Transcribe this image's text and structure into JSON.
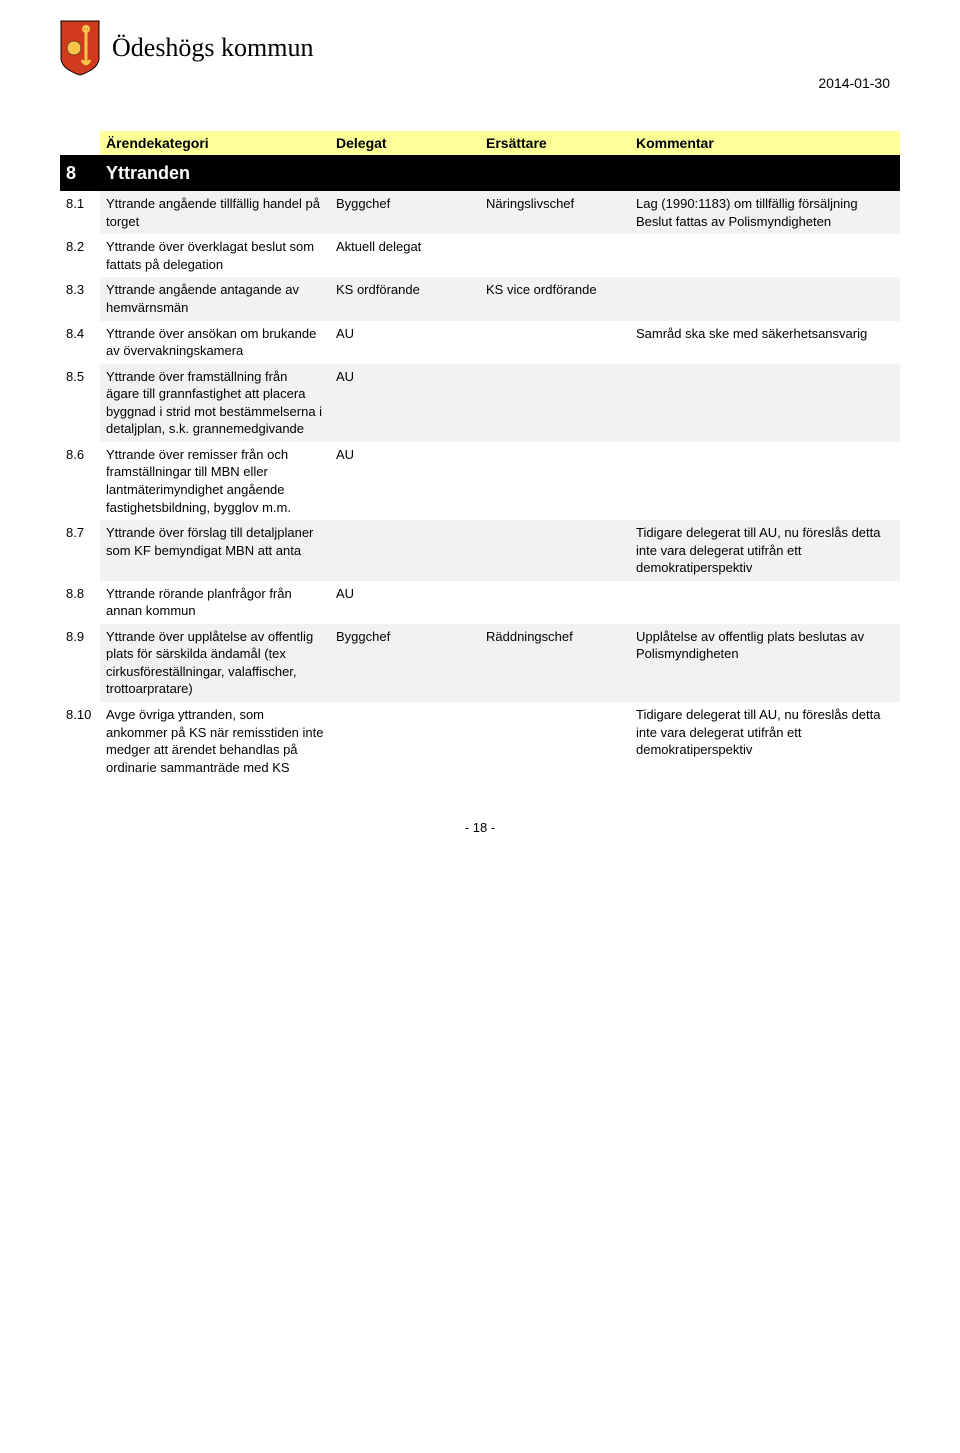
{
  "header": {
    "logo_text": "Ödeshögs kommun",
    "date": "2014-01-30"
  },
  "columns": {
    "c0": "",
    "c1": "Ärendekategori",
    "c2": "Delegat",
    "c3": "Ersättare",
    "c4": "Kommentar"
  },
  "section": {
    "num": "8",
    "title": "Yttranden"
  },
  "rows": [
    {
      "num": "8.1",
      "cat": "Yttrande angående tillfällig handel på torget",
      "delegat": "Byggchef",
      "ersattare": "Näringslivschef",
      "kommentar": "Lag (1990:1183) om tillfällig försäljning Beslut fattas av Polismyndigheten",
      "shaded": true
    },
    {
      "num": "8.2",
      "cat": "Yttrande över överklagat beslut som fattats på delegation",
      "delegat": "Aktuell delegat",
      "ersattare": "",
      "kommentar": "",
      "shaded": false
    },
    {
      "num": "8.3",
      "cat": "Yttrande angående antagande av hemvärnsmän",
      "delegat": "KS ordförande",
      "ersattare": "KS vice ordförande",
      "kommentar": "",
      "shaded": true
    },
    {
      "num": "8.4",
      "cat": "Yttrande över ansökan om brukande av övervakningskamera",
      "delegat": "AU",
      "ersattare": "",
      "kommentar": "Samråd ska ske med säkerhetsansvarig",
      "shaded": false
    },
    {
      "num": "8.5",
      "cat": "Yttrande över framställning från ägare till grannfastighet att placera byggnad i strid mot bestämmelserna i detaljplan, s.k. grannemedgivande",
      "delegat": "AU",
      "ersattare": "",
      "kommentar": "",
      "shaded": true
    },
    {
      "num": "8.6",
      "cat": "Yttrande över remisser från och framställningar till MBN eller lantmäterimyndighet angående fastighetsbildning, bygglov m.m.",
      "delegat": "AU",
      "ersattare": "",
      "kommentar": "",
      "shaded": false
    },
    {
      "num": "8.7",
      "cat": "Yttrande över förslag till detaljplaner som KF bemyndigat MBN att anta",
      "delegat": "",
      "ersattare": "",
      "kommentar": "Tidigare delegerat till AU, nu föreslås detta inte vara delegerat utifrån ett demokratiperspektiv",
      "shaded": true
    },
    {
      "num": "8.8",
      "cat": "Yttrande rörande planfrågor från annan kommun",
      "delegat": "AU",
      "ersattare": "",
      "kommentar": "",
      "shaded": false
    },
    {
      "num": "8.9",
      "cat": "Yttrande över upplåtelse av offentlig plats för särskilda ändamål (tex cirkusföreställningar, valaffischer, trottoarpratare)",
      "delegat": "Byggchef",
      "ersattare": "Räddningschef",
      "kommentar": "Upplåtelse av offentlig plats beslutas av Polismyndigheten",
      "shaded": true
    },
    {
      "num": "8.10",
      "cat": "Avge övriga yttranden, som ankommer på KS när remisstiden inte medger att ärendet behandlas på ordinarie sammanträde med KS",
      "delegat": "",
      "ersattare": "",
      "kommentar": "Tidigare delegerat till AU, nu föreslås detta inte vara delegerat utifrån ett demokratiperspektiv",
      "shaded": false
    }
  ],
  "footer": {
    "page": "- 18 -"
  },
  "style": {
    "header_bg": "#ffff99",
    "section_bg": "#000000",
    "section_fg": "#ffffff",
    "shaded_bg": "#f2f2f2",
    "logo_red": "#d13a1f",
    "logo_yellow": "#f6c54a"
  }
}
